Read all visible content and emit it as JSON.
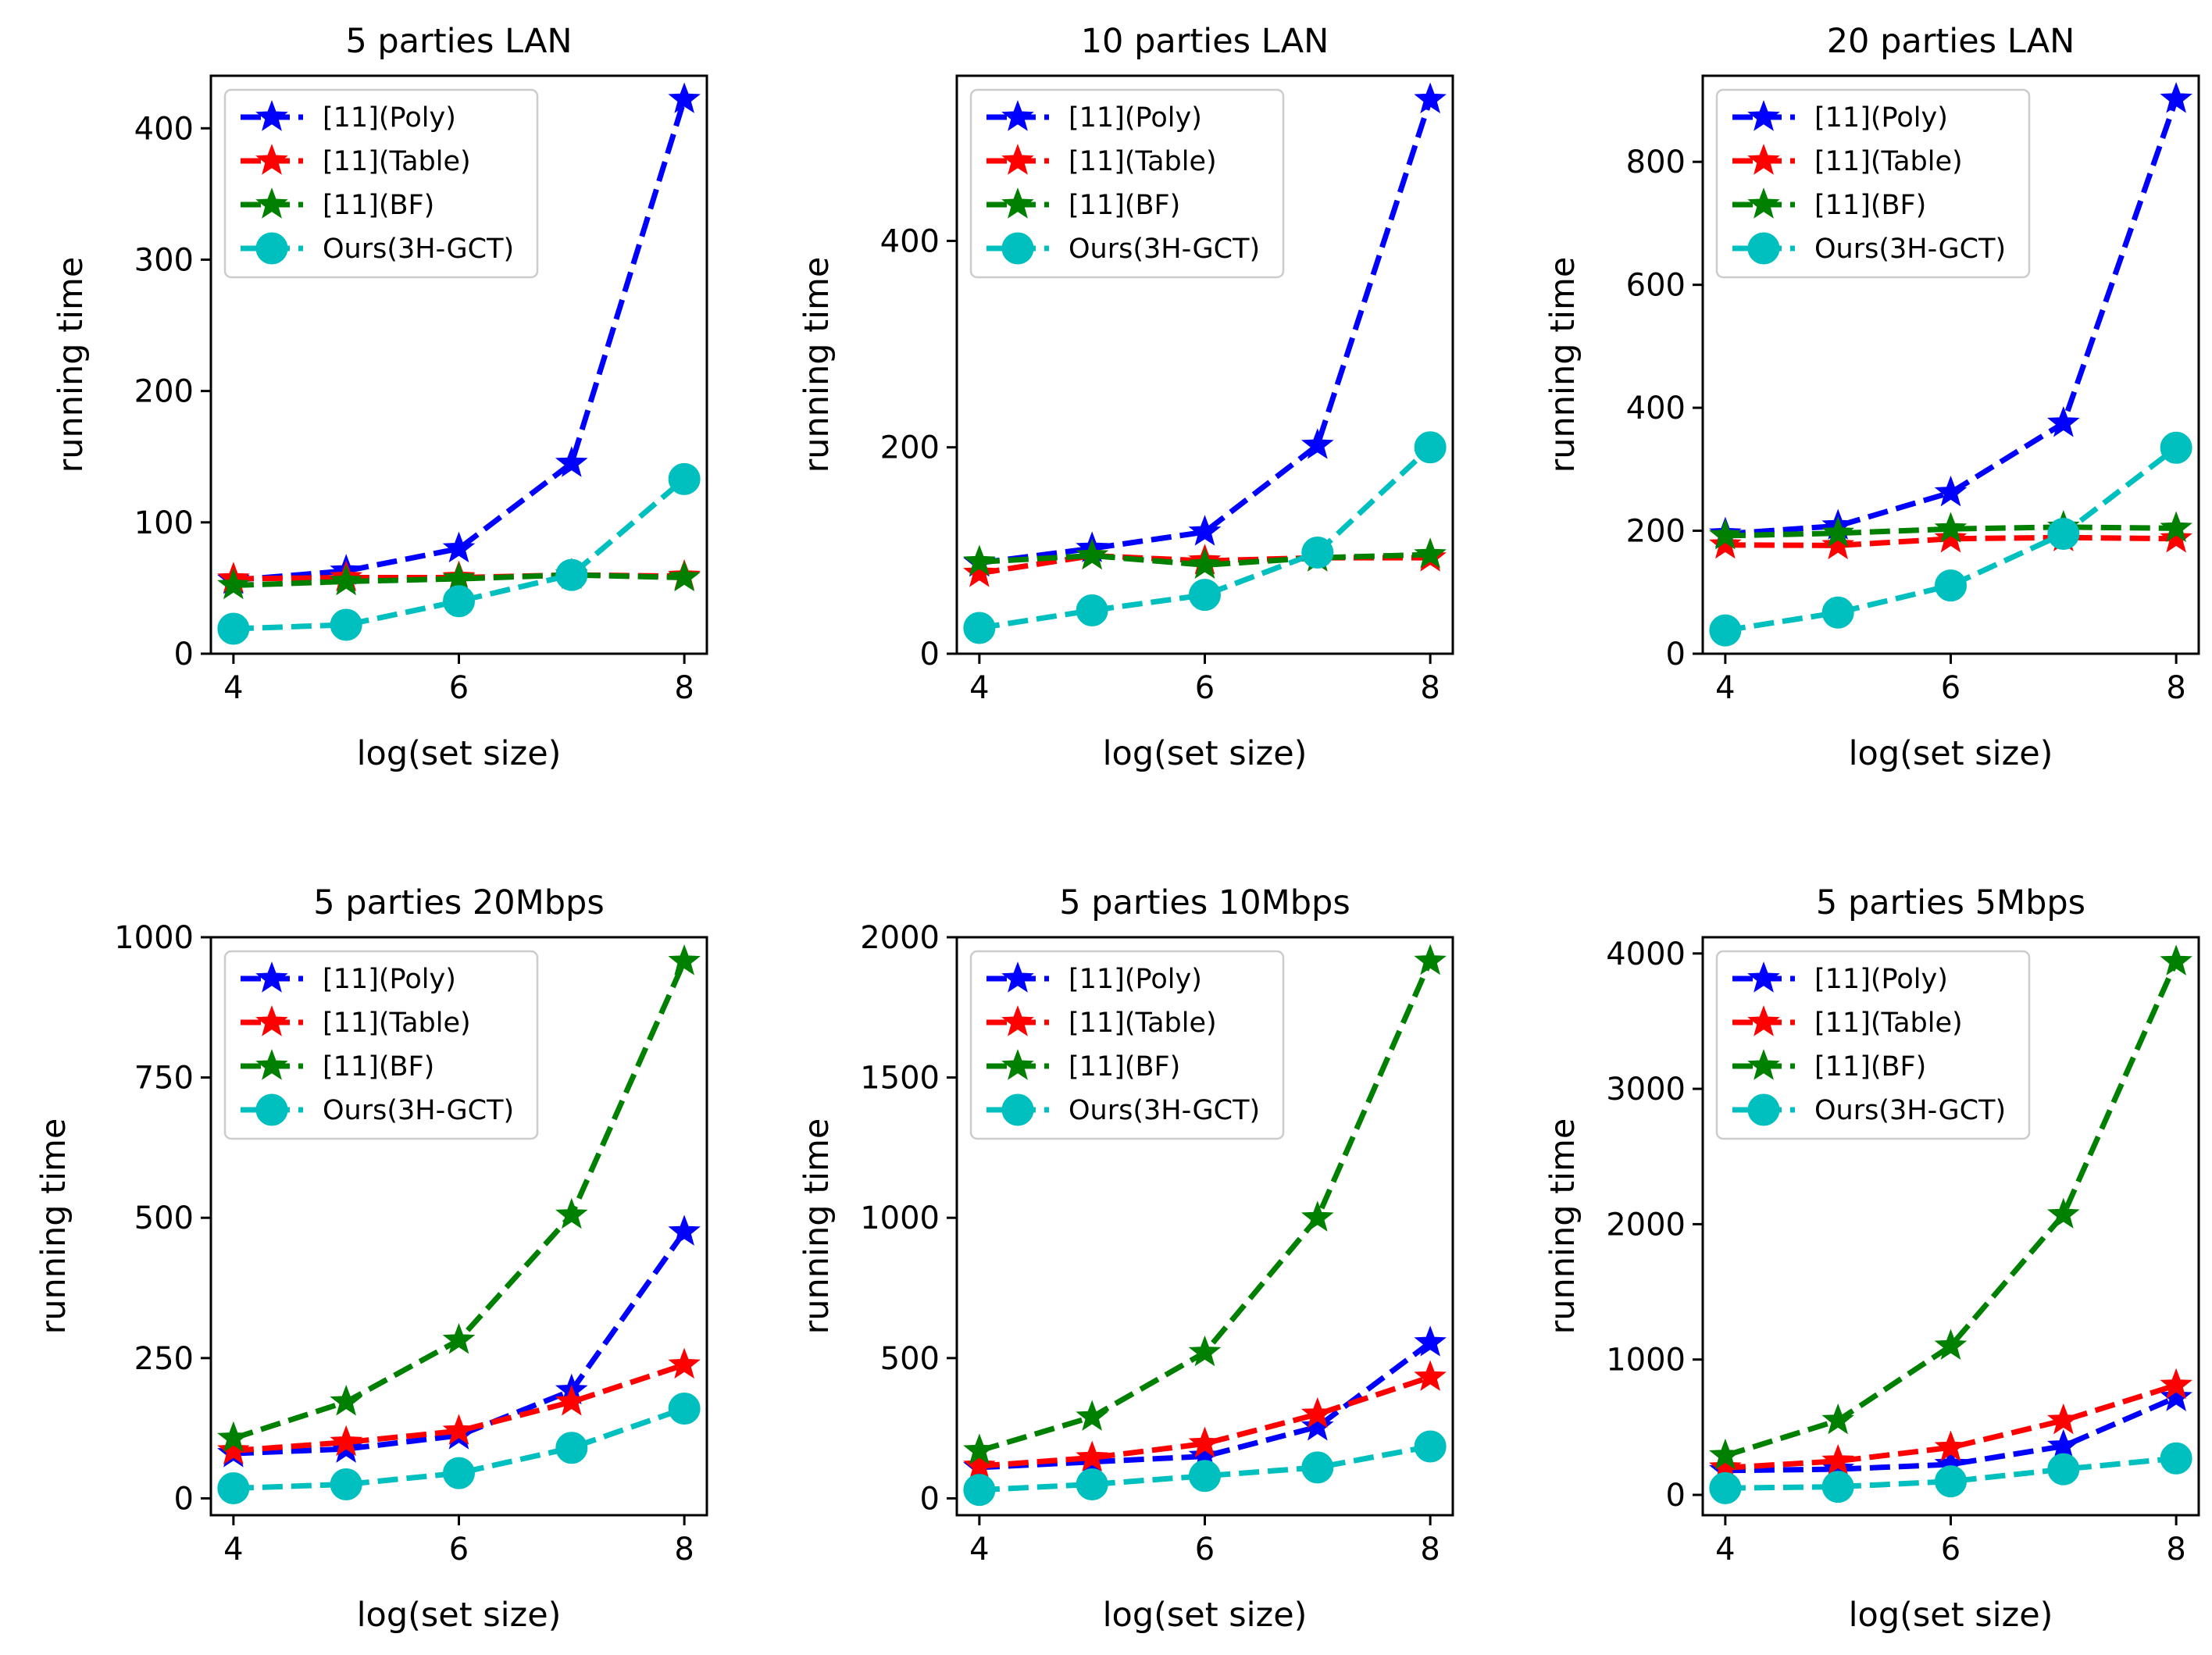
{
  "figure": {
    "background": "#ffffff"
  },
  "series_style": [
    {
      "name": "[11](Poly)",
      "color": "#0000ff",
      "marker": "star"
    },
    {
      "name": "[11](Table)",
      "color": "#ff0000",
      "marker": "star"
    },
    {
      "name": "[11](BF)",
      "color": "#008000",
      "marker": "star"
    },
    {
      "name": "Ours(3H-GCT)",
      "color": "#00bfbf",
      "marker": "circle"
    }
  ],
  "chart_data": [
    {
      "type": "line",
      "title": "5 parties LAN",
      "xlabel": "log(set size)",
      "ylabel": "running time",
      "x": [
        4,
        5,
        6,
        7,
        8
      ],
      "xlim": [
        3.8,
        8.2
      ],
      "xticks": [
        4,
        6,
        8
      ],
      "ylim": [
        0,
        440
      ],
      "yticks": [
        0,
        100,
        200,
        300,
        400
      ],
      "legend": "upper-left",
      "series": [
        {
          "name": "[11](Poly)",
          "values": [
            56,
            63,
            80,
            145,
            422
          ]
        },
        {
          "name": "[11](Table)",
          "values": [
            57,
            58,
            58,
            60,
            59
          ]
        },
        {
          "name": "[11](BF)",
          "values": [
            52,
            55,
            57,
            60,
            58
          ]
        },
        {
          "name": "Ours(3H-GCT)",
          "values": [
            19,
            22,
            40,
            60,
            133
          ]
        }
      ]
    },
    {
      "type": "line",
      "title": "10 parties LAN",
      "xlabel": "log(set size)",
      "ylabel": "running time",
      "x": [
        4,
        5,
        6,
        7,
        8
      ],
      "xlim": [
        3.8,
        8.2
      ],
      "xticks": [
        4,
        6,
        8
      ],
      "ylim": [
        0,
        560
      ],
      "yticks": [
        0,
        200,
        400
      ],
      "legend": "upper-left",
      "series": [
        {
          "name": "[11](Poly)",
          "values": [
            88,
            102,
            118,
            202,
            537
          ]
        },
        {
          "name": "[11](Table)",
          "values": [
            78,
            95,
            90,
            93,
            93
          ]
        },
        {
          "name": "[11](BF)",
          "values": [
            89,
            95,
            86,
            93,
            96
          ]
        },
        {
          "name": "Ours(3H-GCT)",
          "values": [
            25,
            42,
            57,
            98,
            200
          ]
        }
      ]
    },
    {
      "type": "line",
      "title": "20 parties LAN",
      "xlabel": "log(set size)",
      "ylabel": "running time",
      "x": [
        4,
        5,
        6,
        7,
        8
      ],
      "xlim": [
        3.8,
        8.2
      ],
      "xticks": [
        4,
        6,
        8
      ],
      "ylim": [
        0,
        940
      ],
      "yticks": [
        0,
        200,
        400,
        600,
        800
      ],
      "legend": "upper-left",
      "series": [
        {
          "name": "[11](Poly)",
          "values": [
            195,
            208,
            262,
            375,
            902
          ]
        },
        {
          "name": "[11](Table)",
          "values": [
            177,
            176,
            187,
            189,
            187
          ]
        },
        {
          "name": "[11](BF)",
          "values": [
            192,
            196,
            203,
            206,
            204
          ]
        },
        {
          "name": "Ours(3H-GCT)",
          "values": [
            38,
            67,
            111,
            195,
            335
          ]
        }
      ]
    },
    {
      "type": "line",
      "title": "5 parties 20Mbps",
      "xlabel": "log(set size)",
      "ylabel": "running time",
      "x": [
        4,
        5,
        6,
        7,
        8
      ],
      "xlim": [
        3.8,
        8.2
      ],
      "xticks": [
        4,
        6,
        8
      ],
      "ylim": [
        -30,
        1000
      ],
      "yticks": [
        0,
        250,
        500,
        750,
        1000
      ],
      "legend": "upper-left",
      "series": [
        {
          "name": "[11](Poly)",
          "values": [
            80,
            88,
            112,
            192,
            475
          ]
        },
        {
          "name": "[11](Table)",
          "values": [
            85,
            100,
            120,
            172,
            238
          ]
        },
        {
          "name": "[11](BF)",
          "values": [
            107,
            172,
            282,
            505,
            957
          ]
        },
        {
          "name": "Ours(3H-GCT)",
          "values": [
            18,
            25,
            45,
            90,
            160
          ]
        }
      ]
    },
    {
      "type": "line",
      "title": "5 parties 10Mbps",
      "xlabel": "log(set size)",
      "ylabel": "running time",
      "x": [
        4,
        5,
        6,
        7,
        8
      ],
      "xlim": [
        3.8,
        8.2
      ],
      "xticks": [
        4,
        6,
        8
      ],
      "ylim": [
        -60,
        2000
      ],
      "yticks": [
        0,
        500,
        1000,
        1500,
        2000
      ],
      "legend": "upper-left",
      "series": [
        {
          "name": "[11](Poly)",
          "values": [
            110,
            130,
            150,
            255,
            555
          ]
        },
        {
          "name": "[11](Table)",
          "values": [
            115,
            145,
            195,
            300,
            432
          ]
        },
        {
          "name": "[11](BF)",
          "values": [
            170,
            290,
            520,
            1000,
            1915
          ]
        },
        {
          "name": "Ours(3H-GCT)",
          "values": [
            30,
            50,
            80,
            110,
            185
          ]
        }
      ]
    },
    {
      "type": "line",
      "title": "5 parties 5Mbps",
      "xlabel": "log(set size)",
      "ylabel": "running time",
      "x": [
        4,
        5,
        6,
        7,
        8
      ],
      "xlim": [
        3.8,
        8.2
      ],
      "xticks": [
        4,
        6,
        8
      ],
      "ylim": [
        -150,
        4120
      ],
      "yticks": [
        0,
        1000,
        2000,
        3000,
        4000
      ],
      "legend": "upper-left",
      "series": [
        {
          "name": "[11](Poly)",
          "values": [
            180,
            190,
            225,
            360,
            720
          ]
        },
        {
          "name": "[11](Table)",
          "values": [
            200,
            250,
            350,
            550,
            810
          ]
        },
        {
          "name": "[11](BF)",
          "values": [
            290,
            550,
            1100,
            2070,
            3940
          ]
        },
        {
          "name": "Ours(3H-GCT)",
          "values": [
            50,
            60,
            100,
            190,
            270
          ]
        }
      ]
    }
  ]
}
